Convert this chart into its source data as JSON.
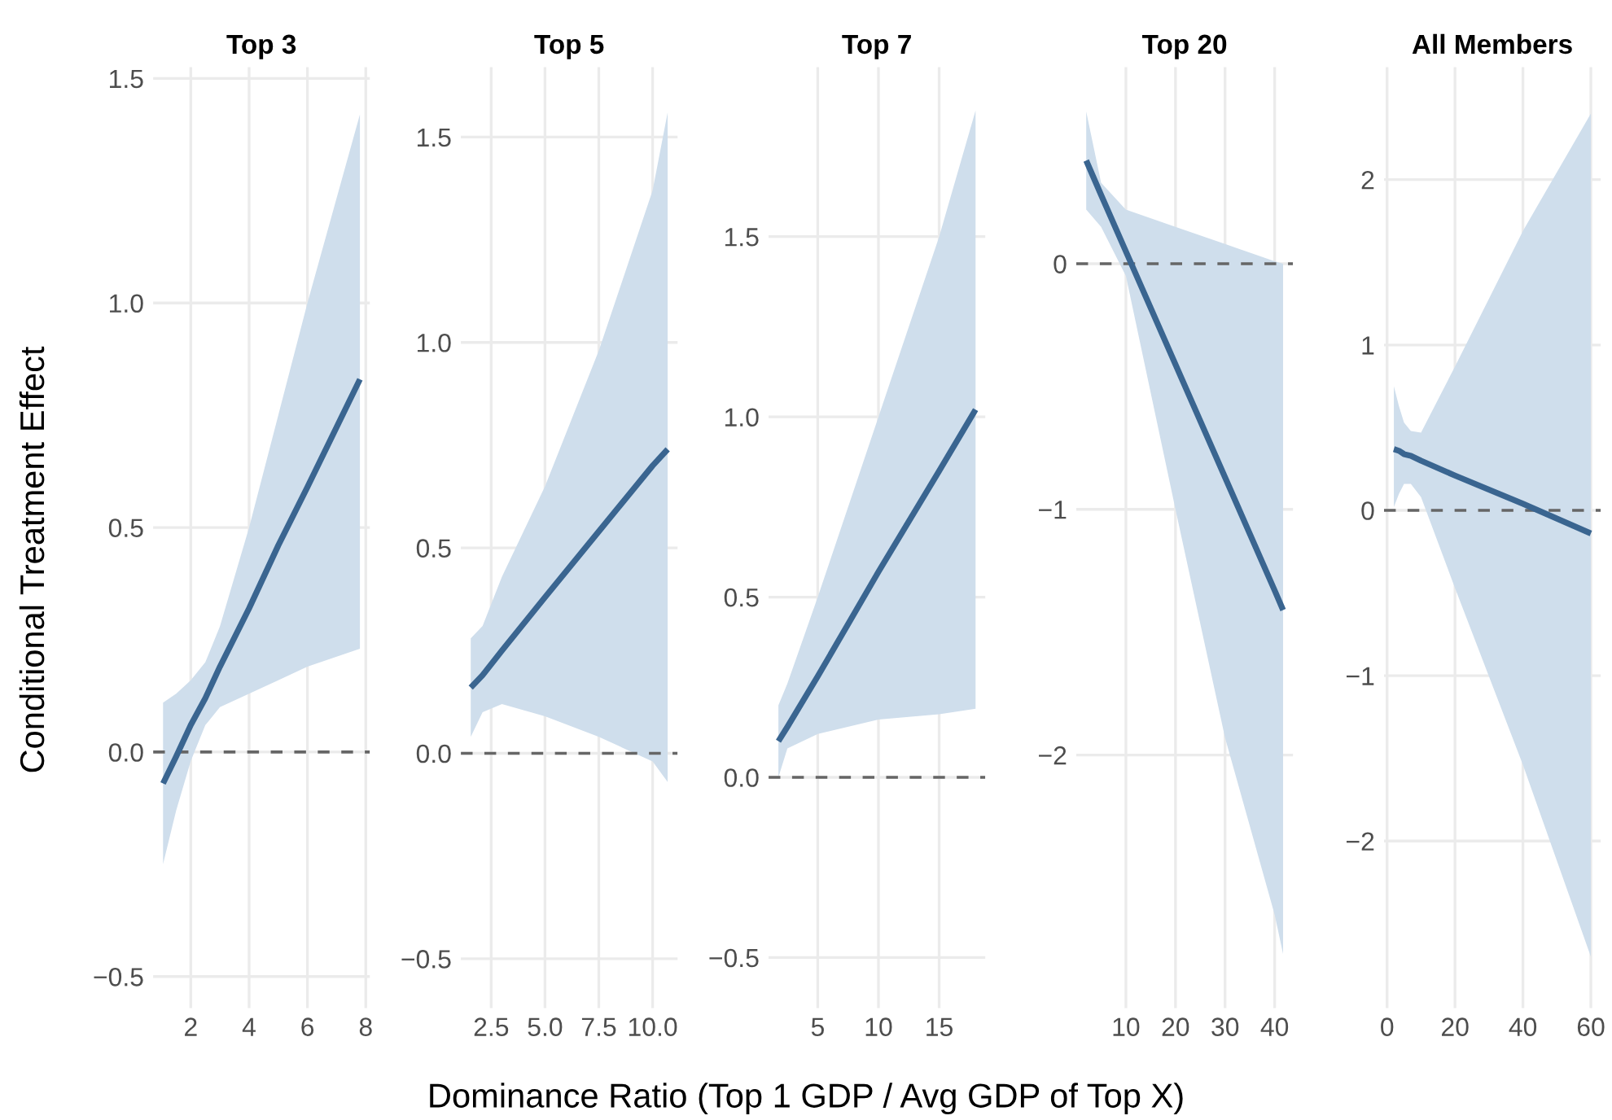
{
  "chart_data": [
    {
      "type": "line",
      "title": "Top 3",
      "ylabel": "Conditional Treatment Effect",
      "grid": true,
      "xlim": [
        0.71,
        8.14
      ],
      "ylim": [
        -0.57,
        1.525
      ],
      "xticks": [
        2,
        4,
        6,
        8
      ],
      "yticks": [
        {
          "value": -0.5,
          "label": "−0.5"
        },
        {
          "value": 0,
          "label": "0.0"
        },
        {
          "value": 0.5,
          "label": "0.5"
        },
        {
          "value": 1.0,
          "label": "1.0"
        },
        {
          "value": 1.5,
          "label": "1.5"
        }
      ],
      "ref_lines": [
        {
          "axis": "y",
          "value": 0,
          "color": "#666666",
          "line_style": "dashed"
        }
      ],
      "series": [
        {
          "color": "#3a6590",
          "x": [
            1.05,
            1.5,
            2,
            2.5,
            3,
            4,
            5,
            6,
            7.8
          ],
          "values": [
            -0.07,
            -0.01,
            0.06,
            0.12,
            0.19,
            0.32,
            0.46,
            0.59,
            0.83
          ],
          "lower": [
            -0.25,
            -0.13,
            -0.02,
            0.06,
            0.1,
            0.13,
            0.16,
            0.19,
            0.23
          ],
          "upper": [
            0.11,
            0.13,
            0.16,
            0.2,
            0.28,
            0.5,
            0.75,
            1.0,
            1.42
          ]
        }
      ]
    },
    {
      "type": "line",
      "title": "Top 5",
      "grid": true,
      "xlim": [
        1.09,
        11.16
      ],
      "ylim": [
        -0.62,
        1.67
      ],
      "xticks": [
        {
          "value": 2.5,
          "label": "2.5"
        },
        {
          "value": 5,
          "label": "5.0"
        },
        {
          "value": 7.5,
          "label": "7.5"
        },
        {
          "value": 10,
          "label": "10.0"
        }
      ],
      "yticks": [
        {
          "value": -0.5,
          "label": "−0.5"
        },
        {
          "value": 0,
          "label": "0.0"
        },
        {
          "value": 0.5,
          "label": "0.5"
        },
        {
          "value": 1.0,
          "label": "1.0"
        },
        {
          "value": 1.5,
          "label": "1.5"
        }
      ],
      "ref_lines": [
        {
          "axis": "y",
          "value": 0,
          "color": "#666666",
          "line_style": "dashed"
        }
      ],
      "series": [
        {
          "color": "#3a6590",
          "x": [
            1.55,
            2.1,
            3,
            5,
            7.5,
            10,
            10.7
          ],
          "values": [
            0.16,
            0.19,
            0.25,
            0.38,
            0.54,
            0.7,
            0.74
          ],
          "lower": [
            0.04,
            0.1,
            0.12,
            0.09,
            0.04,
            -0.02,
            -0.07
          ],
          "upper": [
            0.28,
            0.31,
            0.43,
            0.65,
            0.98,
            1.37,
            1.56
          ]
        }
      ]
    },
    {
      "type": "line",
      "title": "Top 7",
      "xlabel": "Dominance Ratio (Top 1 GDP / Avg GDP of Top X)",
      "grid": true,
      "xlim": [
        0.95,
        18.8
      ],
      "ylim": [
        -0.64,
        1.97
      ],
      "xticks": [
        5,
        10,
        15
      ],
      "yticks": [
        {
          "value": -0.5,
          "label": "−0.5"
        },
        {
          "value": 0,
          "label": "0.0"
        },
        {
          "value": 0.5,
          "label": "0.5"
        },
        {
          "value": 1.0,
          "label": "1.0"
        },
        {
          "value": 1.5,
          "label": "1.5"
        }
      ],
      "ref_lines": [
        {
          "axis": "y",
          "value": 0,
          "color": "#666666",
          "line_style": "dashed"
        }
      ],
      "series": [
        {
          "color": "#3a6590",
          "x": [
            1.76,
            2.5,
            5,
            10,
            15,
            18
          ],
          "values": [
            0.1,
            0.14,
            0.28,
            0.57,
            0.85,
            1.02
          ],
          "lower": [
            0.0,
            0.08,
            0.12,
            0.16,
            0.175,
            0.19
          ],
          "upper": [
            0.2,
            0.26,
            0.5,
            1.0,
            1.5,
            1.85
          ]
        }
      ]
    },
    {
      "type": "line",
      "title": "Top 20",
      "grid": true,
      "xlim": [
        0.0,
        43.7
      ],
      "ylim": [
        -3.03,
        0.8
      ],
      "xticks": [
        10,
        20,
        30,
        40
      ],
      "yticks": [
        {
          "value": -2,
          "label": "−2"
        },
        {
          "value": -1,
          "label": "−1"
        },
        0
      ],
      "ref_lines": [
        {
          "axis": "y",
          "value": 0,
          "color": "#666666",
          "line_style": "dashed"
        }
      ],
      "series": [
        {
          "color": "#3a6590",
          "x": [
            2,
            5,
            10,
            20,
            30,
            40,
            41.7
          ],
          "values": [
            0.42,
            0.28,
            0.05,
            -0.41,
            -0.87,
            -1.33,
            -1.41
          ],
          "lower": [
            0.22,
            0.15,
            -0.05,
            -1.0,
            -1.93,
            -2.65,
            -2.81
          ],
          "upper": [
            0.62,
            0.33,
            0.22,
            0.15,
            0.08,
            0.01,
            0.0
          ]
        }
      ]
    },
    {
      "type": "line",
      "title": "All Members",
      "grid": true,
      "xlim": [
        -0.9,
        62.9
      ],
      "ylim": [
        -3.01,
        2.68
      ],
      "xticks": [
        0,
        20,
        40,
        60
      ],
      "yticks": [
        {
          "value": -2,
          "label": "−2"
        },
        {
          "value": -1,
          "label": "−1"
        },
        0,
        1,
        2
      ],
      "ref_lines": [
        {
          "axis": "y",
          "value": 0,
          "color": "#666666",
          "line_style": "dashed"
        }
      ],
      "series": [
        {
          "color": "#3a6590",
          "x": [
            2,
            3.5,
            5,
            7,
            10,
            20,
            40,
            60
          ],
          "values": [
            0.37,
            0.36,
            0.34,
            0.33,
            0.3,
            0.21,
            0.04,
            -0.14
          ],
          "lower": [
            0.02,
            0.1,
            0.16,
            0.16,
            0.08,
            -0.47,
            -1.54,
            -2.7
          ],
          "upper": [
            0.75,
            0.63,
            0.53,
            0.48,
            0.47,
            0.87,
            1.69,
            2.4
          ]
        }
      ]
    }
  ]
}
